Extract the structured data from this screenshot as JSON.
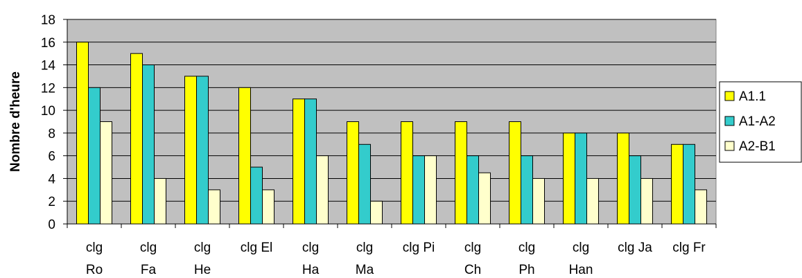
{
  "chart_data": {
    "type": "bar",
    "title": "",
    "xlabel": "",
    "ylabel": "Nombre d'heure",
    "ylim": [
      0,
      18
    ],
    "yticks": [
      0,
      2,
      4,
      6,
      8,
      10,
      12,
      14,
      16,
      18
    ],
    "grid": true,
    "legend_position": "right",
    "plot_background": "#C0C0C0",
    "categories": [
      [
        "clg",
        "Ro"
      ],
      [
        "clg",
        "Fa"
      ],
      [
        "clg",
        "He"
      ],
      [
        "clg El"
      ],
      [
        "clg",
        "Ha"
      ],
      [
        "clg",
        "Ma"
      ],
      [
        "clg Pi"
      ],
      [
        "clg",
        "Ch"
      ],
      [
        "clg",
        "Ph"
      ],
      [
        "clg",
        "Han"
      ],
      [
        "clg Ja"
      ],
      [
        "clg Fr"
      ]
    ],
    "series": [
      {
        "name": "A1.1",
        "color": "#FFFF00",
        "values": [
          16,
          15,
          13,
          12,
          11,
          9,
          9,
          9,
          9,
          8,
          8,
          7
        ]
      },
      {
        "name": "A1-A2",
        "color": "#33CCCC",
        "values": [
          12,
          14,
          13,
          5,
          11,
          7,
          6,
          6,
          6,
          8,
          6,
          7
        ]
      },
      {
        "name": "A2-B1",
        "color": "#FFFFCC",
        "values": [
          9,
          4,
          3,
          3,
          6,
          2,
          6,
          4.5,
          4,
          4,
          4,
          3
        ]
      }
    ]
  }
}
